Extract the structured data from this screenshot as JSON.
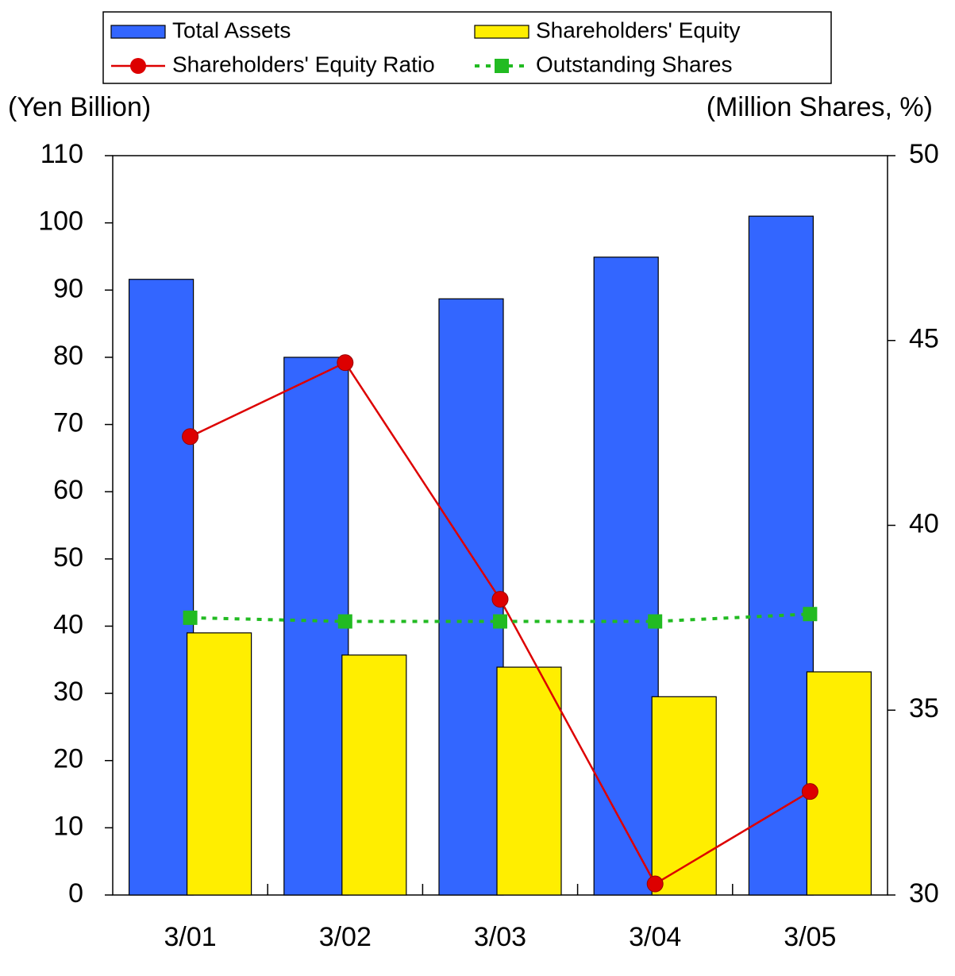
{
  "chart_data": {
    "type": "bar",
    "categories": [
      "3/01",
      "3/02",
      "3/03",
      "3/04",
      "3/05"
    ],
    "y_label": "(Yen Billion)",
    "y2_label": "(Million Shares, %)",
    "series": [
      {
        "name": "Total Assets",
        "type": "bar",
        "color": "#3366ff",
        "values": [
          91.6,
          80.0,
          88.7,
          94.9,
          101.0
        ]
      },
      {
        "name": "Shareholders' Equity",
        "type": "bar",
        "color": "#ffee00",
        "values": [
          39.0,
          35.7,
          33.9,
          29.5,
          33.2
        ]
      },
      {
        "name": "Shareholders' Equity Ratio",
        "type": "line",
        "axis": "y2",
        "color": "#dd0000",
        "marker": "circle",
        "dashed": false,
        "values": [
          42.4,
          44.4,
          38.0,
          30.3,
          32.8
        ]
      },
      {
        "name": "Outstanding Shares",
        "type": "line",
        "axis": "y2",
        "color": "#22bb22",
        "marker": "square",
        "dashed": true,
        "values": [
          37.5,
          37.4,
          37.4,
          37.4,
          37.6
        ]
      }
    ],
    "ylim": [
      0,
      110
    ],
    "yticks": [
      0,
      10,
      20,
      30,
      40,
      50,
      60,
      70,
      80,
      90,
      100,
      110
    ],
    "y2lim": [
      30,
      50
    ],
    "y2ticks": [
      30,
      35,
      40,
      45,
      50
    ],
    "grid": false,
    "legend": "top"
  }
}
